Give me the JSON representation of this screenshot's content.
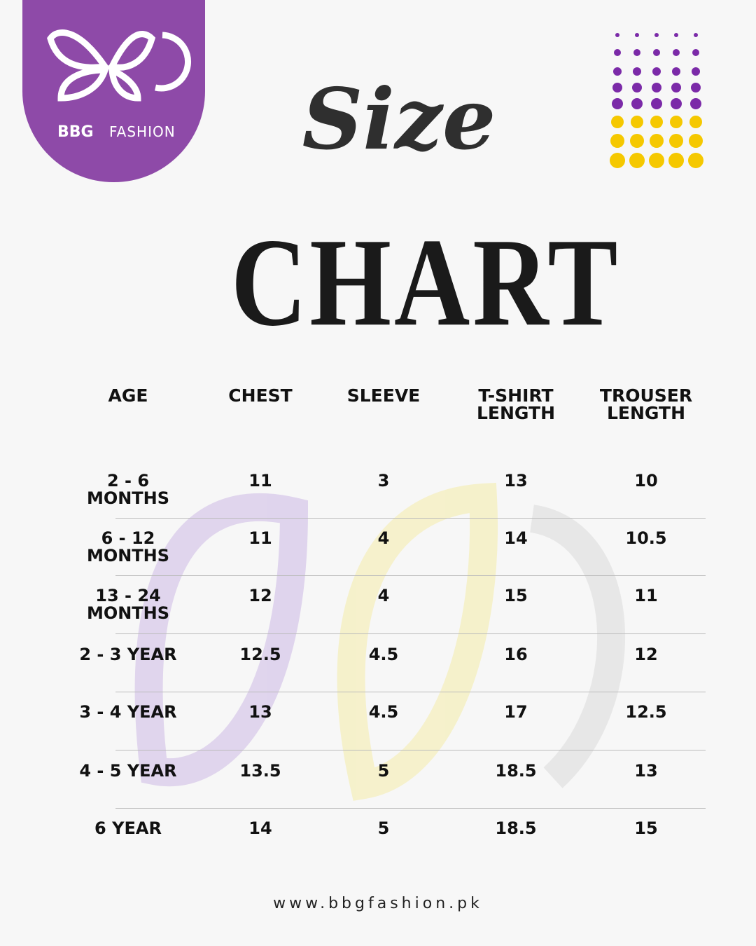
{
  "logo": {
    "brand": "BBG",
    "sub": "FASHION"
  },
  "title": {
    "line1": "Size",
    "line2": "CHART"
  },
  "table": {
    "headers": [
      "AGE",
      "CHEST",
      "SLEEVE",
      "T-SHIRT LENGTH",
      "TROUSER LENGTH"
    ],
    "rows": [
      [
        "2 - 6 MONTHS",
        "11",
        "3",
        "13",
        "10"
      ],
      [
        "6 - 12 MONTHS",
        "11",
        "4",
        "14",
        "10.5"
      ],
      [
        "13 - 24 MONTHS",
        "12",
        "4",
        "15",
        "11"
      ],
      [
        "2 - 3 YEAR",
        "12.5",
        "4.5",
        "16",
        "12"
      ],
      [
        "3 - 4 YEAR",
        "13",
        "4.5",
        "17",
        "12.5"
      ],
      [
        "4 - 5 YEAR",
        "13.5",
        "5",
        "18.5",
        "13"
      ],
      [
        "6 YEAR",
        "14",
        "5",
        "18.5",
        "15"
      ]
    ]
  },
  "footer": {
    "url": "www.bbgfashion.pk"
  }
}
